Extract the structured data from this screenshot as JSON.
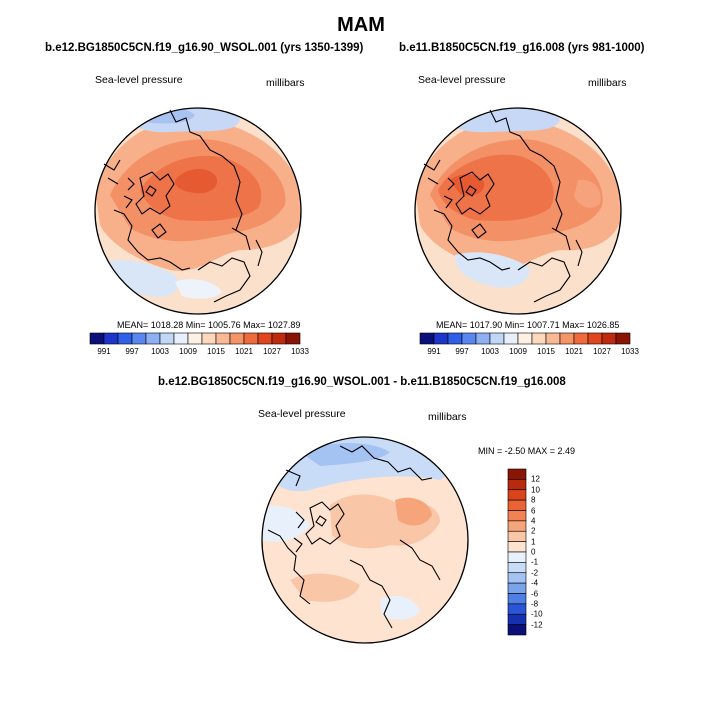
{
  "figure": {
    "title": "MAM"
  },
  "chart_data": [
    {
      "type": "heatmap",
      "projection": "north-polar-stereographic",
      "title": "b.e12.BG1850C5CN.f19_g16.90_WSOL.001 (yrs 1350-1399)",
      "left_label": "Sea-level pressure",
      "right_label": "millibars",
      "stats_text": "MEAN= 1018.28  Min= 1005.76  Max= 1027.89",
      "stats": {
        "mean": 1018.28,
        "min": 1005.76,
        "max": 1027.89
      },
      "colorbar": {
        "orientation": "horizontal",
        "levels": [
          "991",
          "997",
          "1003",
          "1009",
          "1015",
          "1021",
          "1027",
          "1033"
        ],
        "colors": [
          "#0a0f7a",
          "#1d35c8",
          "#2f5ee8",
          "#5a86ef",
          "#8db0f3",
          "#c1d7f7",
          "#e9f0fb",
          "#fdf1e4",
          "#fcd8bd",
          "#f9b994",
          "#f59566",
          "#ef6b3d",
          "#e0451e",
          "#bd2a0e",
          "#8a1505"
        ]
      }
    },
    {
      "type": "heatmap",
      "projection": "north-polar-stereographic",
      "title": "b.e11.B1850C5CN.f19_g16.008 (yrs 981-1000)",
      "left_label": "Sea-level pressure",
      "right_label": "millibars",
      "stats_text": "MEAN= 1017.90  Min= 1007.71  Max= 1026.85",
      "stats": {
        "mean": 1017.9,
        "min": 1007.71,
        "max": 1026.85
      },
      "colorbar": {
        "orientation": "horizontal",
        "levels": [
          "991",
          "997",
          "1003",
          "1009",
          "1015",
          "1021",
          "1027",
          "1033"
        ],
        "colors": [
          "#0a0f7a",
          "#1d35c8",
          "#2f5ee8",
          "#5a86ef",
          "#8db0f3",
          "#c1d7f7",
          "#e9f0fb",
          "#fdf1e4",
          "#fcd8bd",
          "#f9b994",
          "#f59566",
          "#ef6b3d",
          "#e0451e",
          "#bd2a0e",
          "#8a1505"
        ]
      }
    },
    {
      "type": "heatmap",
      "projection": "north-polar-stereographic",
      "title": "b.e12.BG1850C5CN.f19_g16.90_WSOL.001 - b.e11.B1850C5CN.f19_g16.008",
      "left_label": "Sea-level pressure",
      "right_label": "millibars",
      "stats_text": "MIN =  -2.50 MAX =   2.49",
      "stats": {
        "min": -2.5,
        "max": 2.49
      },
      "colorbar": {
        "orientation": "vertical",
        "levels": [
          "12",
          "10",
          "8",
          "6",
          "4",
          "2",
          "1",
          "0",
          "-1",
          "-2",
          "-4",
          "-6",
          "-8",
          "-10",
          "-12"
        ],
        "colors": [
          "#8a1505",
          "#b82a0d",
          "#d9441b",
          "#eb6235",
          "#f28253",
          "#f6a47a",
          "#f9c6a7",
          "#fde3d0",
          "#e8f0fb",
          "#c9dcf7",
          "#a4c2f2",
          "#7aa3ec",
          "#4f7fe4",
          "#2a55d4",
          "#1530b0",
          "#0a0f7a"
        ]
      }
    }
  ]
}
